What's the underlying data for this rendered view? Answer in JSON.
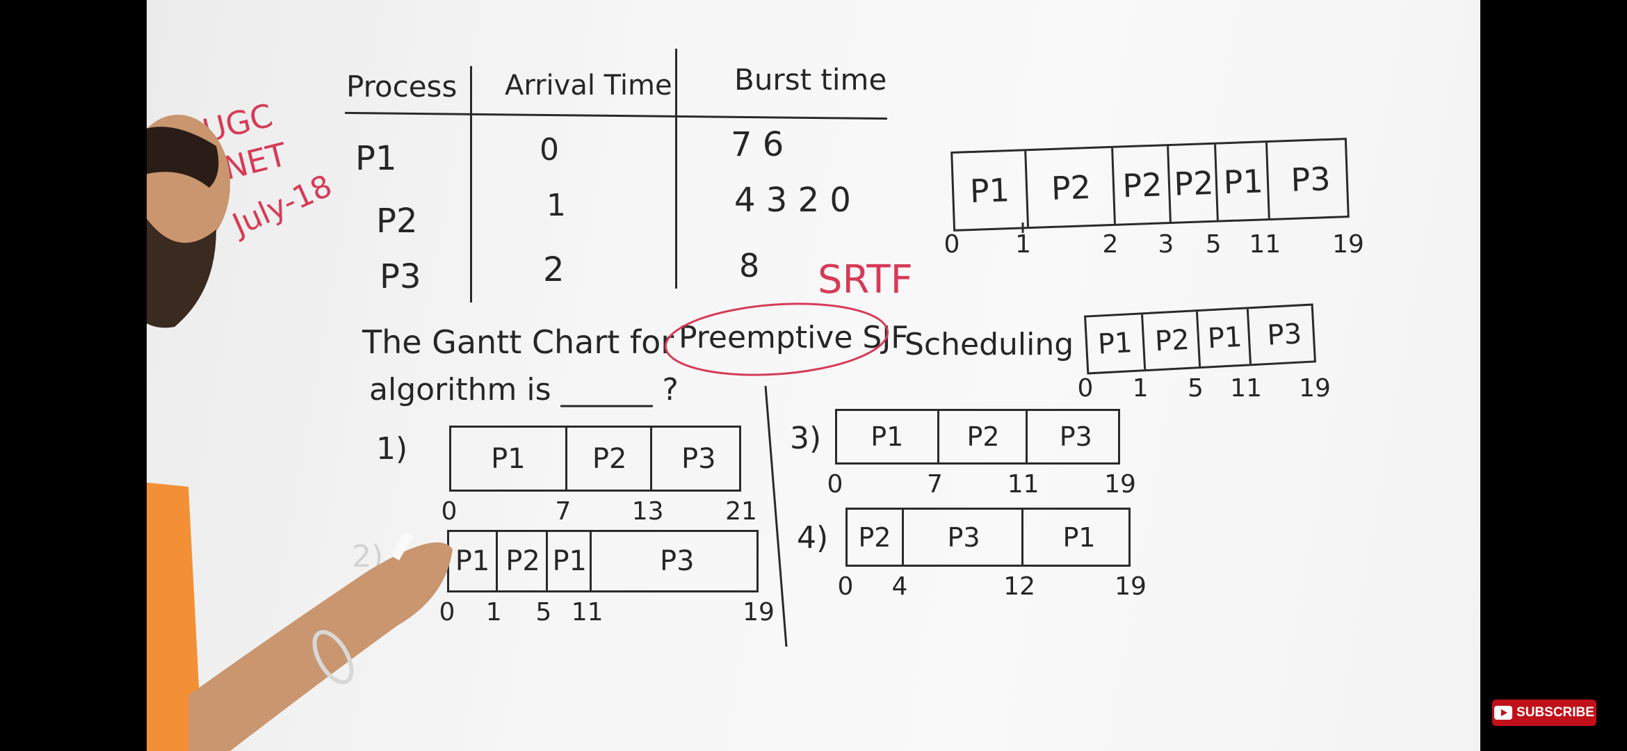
{
  "stamp": {
    "lines": [
      "UGC",
      "NET",
      "July-18"
    ]
  },
  "table": {
    "headers": [
      "Process",
      "Arrival Time",
      "Burst time"
    ],
    "rows": [
      {
        "process": "P1",
        "arrival": "0",
        "burst": "7 6"
      },
      {
        "process": "P2",
        "arrival": "1",
        "burst": "4 3 2 0"
      },
      {
        "process": "P3",
        "arrival": "2",
        "burst": "8"
      }
    ]
  },
  "srtf_label": "SRTF",
  "question": {
    "line1_start": "The Gantt Chart for",
    "circled": "Preemptive SJF",
    "line1_end": "Scheduling",
    "line2": "algorithm is ______ ?"
  },
  "work_chart_a": {
    "cells": [
      "P1",
      "P2",
      "P2",
      "P2",
      "P1",
      "P3"
    ],
    "ticks": [
      "0",
      "1",
      "2",
      "3",
      "5",
      "11",
      "19"
    ]
  },
  "work_chart_b": {
    "cells": [
      "P1",
      "P2",
      "P1",
      "P3"
    ],
    "ticks": [
      "0",
      "1",
      "5",
      "11",
      "19"
    ]
  },
  "options": [
    {
      "label": "1)",
      "cells": [
        "P1",
        "P2",
        "P3"
      ],
      "ticks": [
        "0",
        "7",
        "13",
        "21"
      ]
    },
    {
      "label": "2)",
      "cells": [
        "P1",
        "P2",
        "P1",
        "P3"
      ],
      "ticks": [
        "0",
        "1",
        "5",
        "11",
        "19"
      ]
    },
    {
      "label": "3)",
      "cells": [
        "P1",
        "P2",
        "P3"
      ],
      "ticks": [
        "0",
        "7",
        "11",
        "19"
      ]
    },
    {
      "label": "4)",
      "cells": [
        "P2",
        "P3",
        "P1"
      ],
      "ticks": [
        "0",
        "4",
        "12",
        "19"
      ]
    }
  ],
  "subscribe": {
    "label": "SUBSCRIBE"
  },
  "colors": {
    "marker_red": "#d63b57",
    "ink": "#262626",
    "youtube_red": "#c0101a"
  }
}
